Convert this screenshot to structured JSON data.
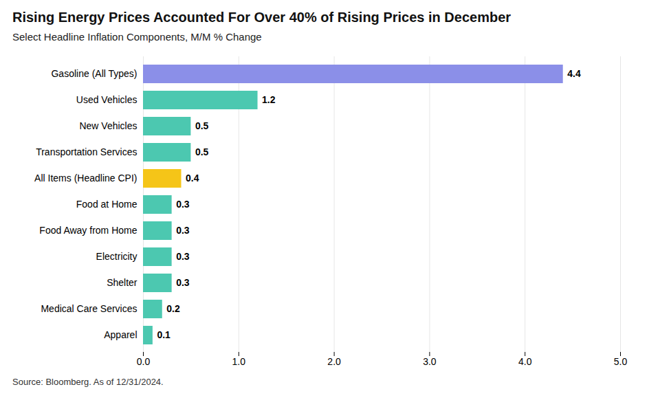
{
  "chart_data": {
    "type": "bar",
    "orientation": "horizontal",
    "title": "Rising Energy Prices Accounted For Over 40% of Rising Prices in December",
    "subtitle": "Select Headline Inflation Components, M/M % Change",
    "source": "Source: Bloomberg. As of 12/31/2024.",
    "categories": [
      "Gasoline (All Types)",
      "Used Vehicles",
      "New Vehicles",
      "Transportation Services",
      "All Items (Headline CPI)",
      "Food at Home",
      "Food Away from Home",
      "Electricity",
      "Shelter",
      "Medical Care Services",
      "Apparel"
    ],
    "values": [
      4.4,
      1.2,
      0.5,
      0.5,
      0.4,
      0.3,
      0.3,
      0.3,
      0.3,
      0.2,
      0.1
    ],
    "colors": [
      "#8B8FE8",
      "#4CC8B0",
      "#4CC8B0",
      "#4CC8B0",
      "#F5C518",
      "#4CC8B0",
      "#4CC8B0",
      "#4CC8B0",
      "#4CC8B0",
      "#4CC8B0",
      "#4CC8B0"
    ],
    "xlim": [
      0,
      5
    ],
    "xticks": [
      0,
      1,
      2,
      3,
      4,
      5
    ],
    "grid": true,
    "data_labels": true
  }
}
